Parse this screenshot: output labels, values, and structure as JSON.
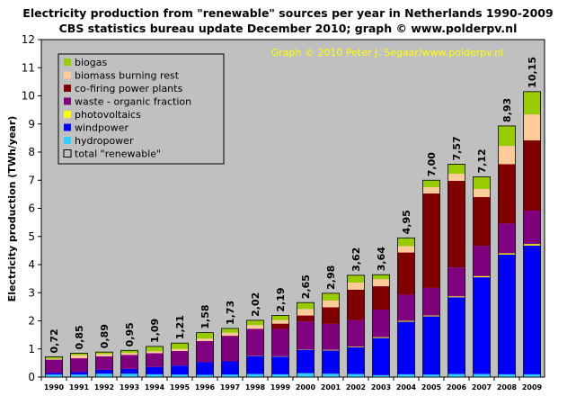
{
  "chart_data": {
    "type": "bar",
    "stacked": true,
    "title": "Electricity production from \"renewable\" sources per year in Netherlands 1990-2009",
    "subtitle": "CBS statistics bureau update December 2010; graph © www.polderpv.nl",
    "credit": "Graph © 2010 Peter J. Segaar/www.polderpv.nl",
    "ylabel": "Electricity production (TWh/year)",
    "xlabel": "",
    "ylim": [
      0,
      12
    ],
    "yticks": [
      "0",
      "1",
      "2",
      "3",
      "4",
      "5",
      "6",
      "7",
      "8",
      "9",
      "10",
      "11",
      "12"
    ],
    "grid": false,
    "background": "#c0c0c0",
    "legend_position": "top-left",
    "categories": [
      "1990",
      "1991",
      "1992",
      "1993",
      "1994",
      "1995",
      "1996",
      "1997",
      "1998",
      "1999",
      "2000",
      "2001",
      "2002",
      "2003",
      "2004",
      "2005",
      "2006",
      "2007",
      "2008",
      "2009"
    ],
    "series": [
      {
        "name": "hydropower",
        "color": "#33ccff",
        "values": [
          0.09,
          0.09,
          0.12,
          0.12,
          0.1,
          0.09,
          0.08,
          0.09,
          0.11,
          0.1,
          0.14,
          0.12,
          0.11,
          0.07,
          0.1,
          0.09,
          0.11,
          0.11,
          0.1,
          0.1
        ]
      },
      {
        "name": "windpower",
        "color": "#0000ff",
        "values": [
          0.06,
          0.09,
          0.14,
          0.17,
          0.26,
          0.32,
          0.45,
          0.47,
          0.64,
          0.63,
          0.83,
          0.83,
          0.95,
          1.32,
          1.87,
          2.07,
          2.73,
          3.44,
          4.26,
          4.58
        ]
      },
      {
        "name": "photovoltaics",
        "color": "#ffff00",
        "values": [
          0.0,
          0.0,
          0.0,
          0.0,
          0.0,
          0.0,
          0.0,
          0.0,
          0.01,
          0.01,
          0.01,
          0.02,
          0.02,
          0.03,
          0.03,
          0.03,
          0.03,
          0.04,
          0.04,
          0.05
        ]
      },
      {
        "name": "waste - organic fraction",
        "color": "#800080",
        "values": [
          0.47,
          0.49,
          0.48,
          0.5,
          0.49,
          0.52,
          0.75,
          0.9,
          0.95,
          0.97,
          1.0,
          0.93,
          0.95,
          0.98,
          0.93,
          0.98,
          1.03,
          1.08,
          1.06,
          1.19
        ]
      },
      {
        "name": "co-firing power plants",
        "color": "#800000",
        "values": [
          0.0,
          0.0,
          0.0,
          0.0,
          0.0,
          0.0,
          0.0,
          0.01,
          0.01,
          0.19,
          0.21,
          0.58,
          1.08,
          0.83,
          1.5,
          3.36,
          3.08,
          1.73,
          2.11,
          2.5
        ]
      },
      {
        "name": "biomass burning rest",
        "color": "#ffcc99",
        "values": [
          0.03,
          0.11,
          0.08,
          0.07,
          0.07,
          0.07,
          0.09,
          0.11,
          0.13,
          0.13,
          0.23,
          0.24,
          0.25,
          0.25,
          0.23,
          0.22,
          0.25,
          0.29,
          0.65,
          0.92
        ]
      },
      {
        "name": "biogas",
        "color": "#99cc00",
        "values": [
          0.07,
          0.07,
          0.07,
          0.09,
          0.17,
          0.21,
          0.21,
          0.15,
          0.17,
          0.16,
          0.23,
          0.26,
          0.26,
          0.16,
          0.29,
          0.25,
          0.34,
          0.43,
          0.71,
          0.81
        ]
      }
    ],
    "totals": {
      "name": "total \"renewable\"",
      "values": [
        0.72,
        0.85,
        0.89,
        0.95,
        1.09,
        1.21,
        1.58,
        1.73,
        2.02,
        2.19,
        2.65,
        2.98,
        3.62,
        3.64,
        4.95,
        7.0,
        7.57,
        7.12,
        8.93,
        10.15
      ],
      "labels": [
        "0,72",
        "0,85",
        "0,89",
        "0,95",
        "1,09",
        "1,21",
        "1,58",
        "1,73",
        "2,02",
        "2,19",
        "2,65",
        "2,98",
        "3,62",
        "3,64",
        "4,95",
        "7,00",
        "7,57",
        "7,12",
        "8,93",
        "10,15"
      ]
    },
    "legend_order": [
      "biogas",
      "biomass burning rest",
      "co-firing power plants",
      "waste - organic fraction",
      "photovoltaics",
      "windpower",
      "hydropower",
      "total \"renewable\""
    ]
  }
}
